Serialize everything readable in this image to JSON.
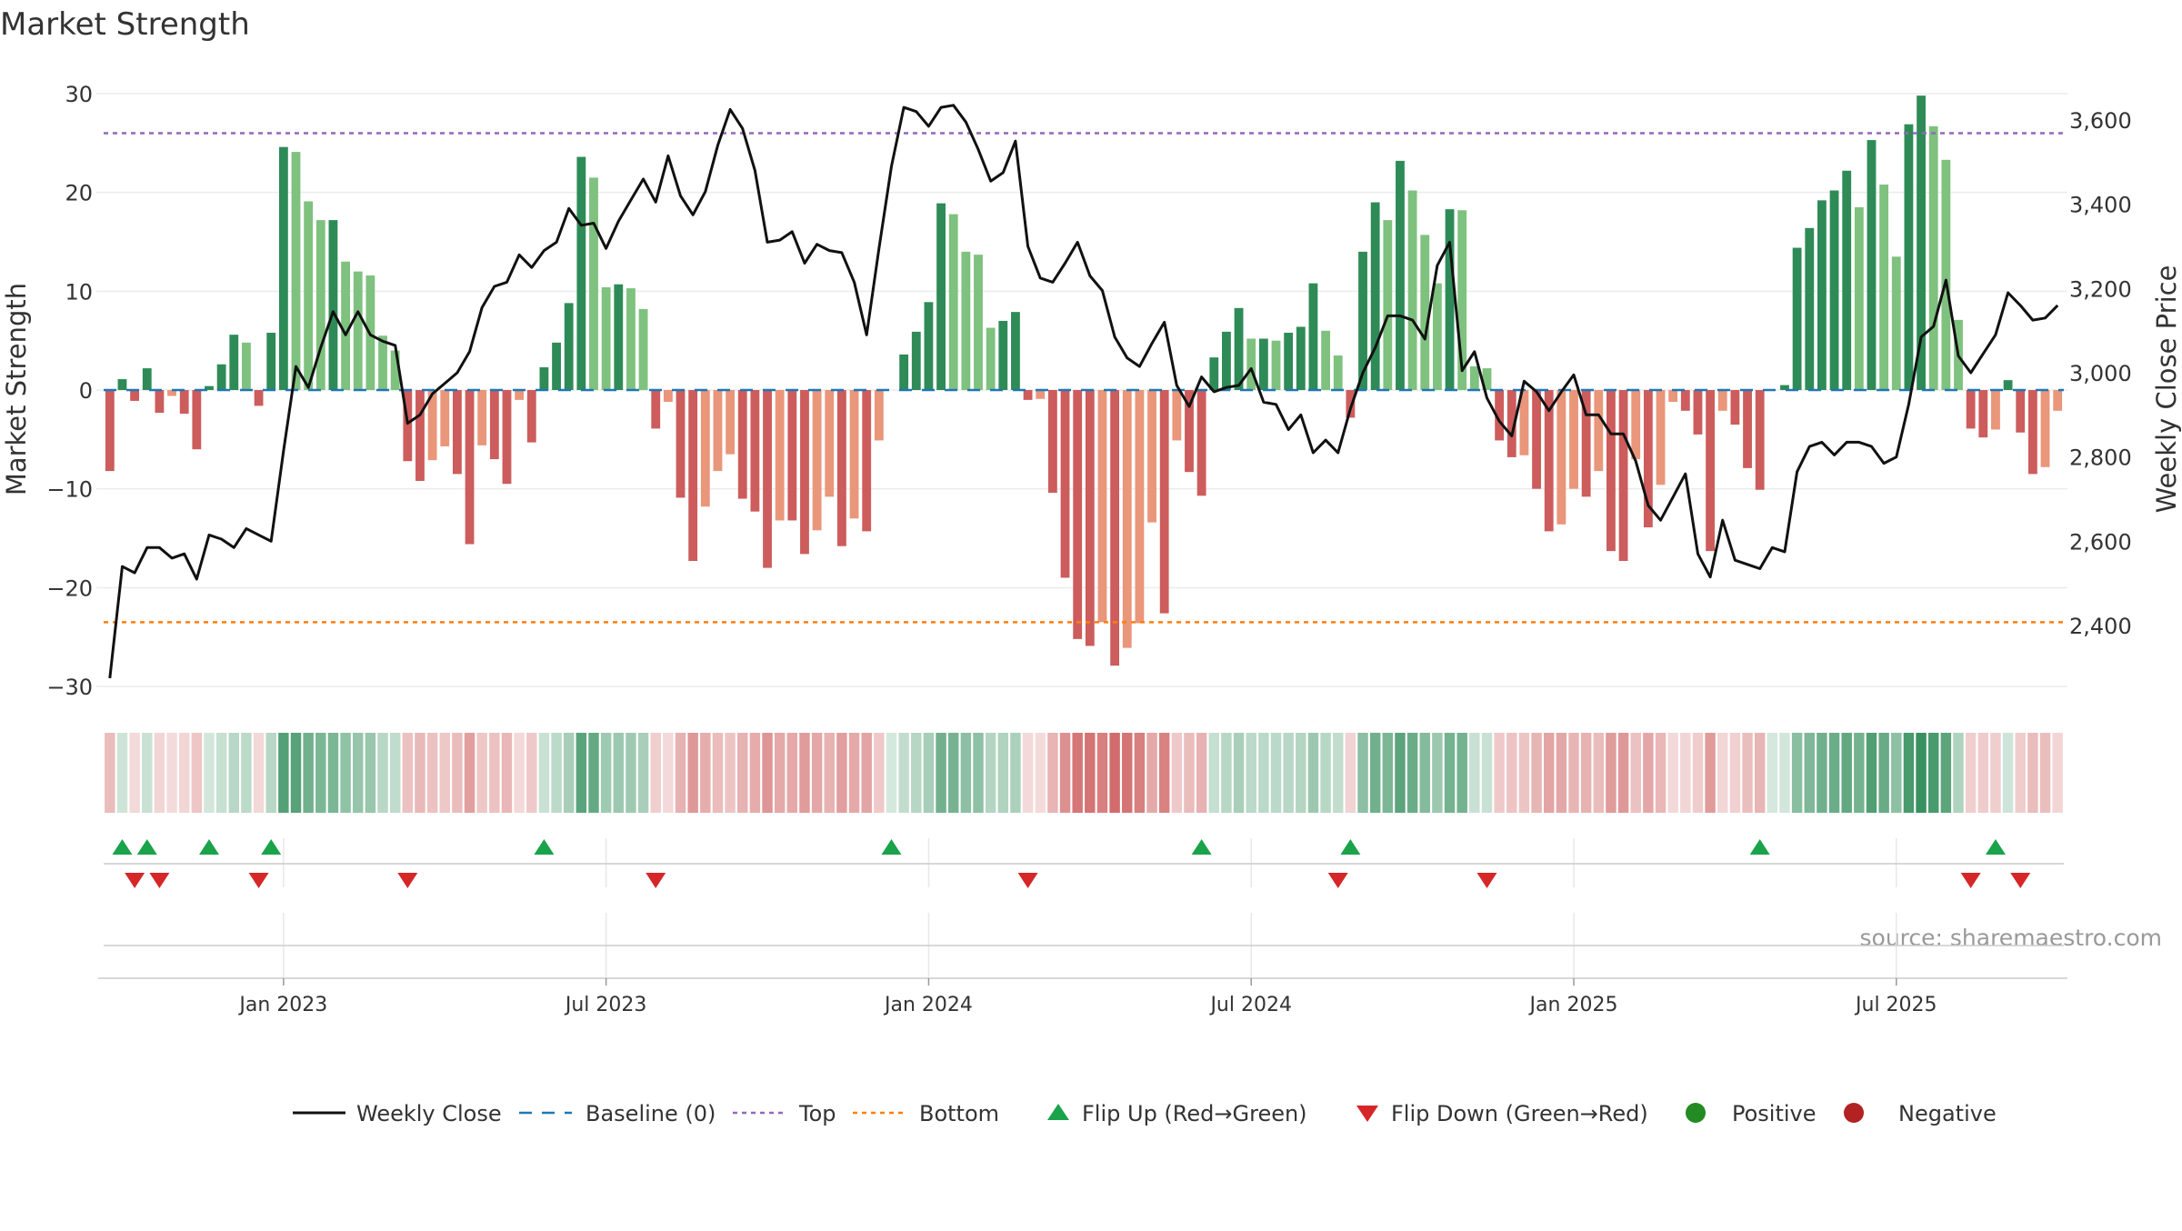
{
  "chart_data": {
    "type": "bar",
    "title": "Market Strength",
    "ylabel": "Market Strength",
    "y2label": "Weekly Close Price",
    "ylim": [
      -32,
      32
    ],
    "y2lim": [
      2200,
      3720
    ],
    "yticks": [
      30,
      20,
      10,
      0,
      -10,
      -20,
      -30
    ],
    "ytick_labels": [
      "30",
      "20",
      "10",
      "0",
      "−10",
      "−20",
      "−30"
    ],
    "y2ticks": [
      3600,
      3400,
      3200,
      3000,
      2800,
      2600,
      2400
    ],
    "y2tick_labels": [
      "3,600",
      "3,400",
      "3,200",
      "3,000",
      "2,800",
      "2,600",
      "2,400"
    ],
    "xticks": [
      {
        "index": 14,
        "label": "Jan 2023"
      },
      {
        "index": 40,
        "label": "Jul 2023"
      },
      {
        "index": 66,
        "label": "Jan 2024"
      },
      {
        "index": 92,
        "label": "Jul 2024"
      },
      {
        "index": 118,
        "label": "Jan 2025"
      },
      {
        "index": 144,
        "label": "Jul 2025"
      }
    ],
    "top_level": 26,
    "bottom_level": -23.5,
    "colors": {
      "pos_strong": "#2e8b57",
      "pos_weak": "#7fc17f",
      "neg_strong": "#cd5c5c",
      "neg_weak": "#e9967a",
      "line": "#111111",
      "baseline": "#1f77b4",
      "top": "#9467bd",
      "bottom": "#ff7f0e",
      "flip_up": "#1aa34a",
      "flip_down": "#d62728",
      "positive": "#228b22",
      "negative": "#b22222"
    },
    "series": [
      {
        "name": "Market Strength",
        "values": [
          -8.2,
          1.1,
          -1.1,
          2.2,
          -2.3,
          -0.6,
          -2.4,
          -6.0,
          0.4,
          2.6,
          5.6,
          4.8,
          -1.6,
          5.8,
          24.6,
          24.1,
          19.1,
          17.2,
          17.2,
          13.0,
          12.0,
          11.6,
          5.5,
          4.0,
          -7.2,
          -9.2,
          -7.1,
          -5.7,
          -8.5,
          -15.6,
          -5.6,
          -7.0,
          -9.5,
          -1.0,
          -5.3,
          2.3,
          4.8,
          8.8,
          23.6,
          21.5,
          10.4,
          10.7,
          10.3,
          8.2,
          -3.9,
          -1.2,
          -10.9,
          -17.3,
          -11.8,
          -8.2,
          -6.5,
          -11.0,
          -12.3,
          -18.0,
          -13.2,
          -13.2,
          -16.6,
          -14.2,
          -10.8,
          -15.8,
          -13.0,
          -14.3,
          -5.1,
          0.0,
          3.6,
          5.9,
          8.9,
          18.9,
          17.8,
          14.0,
          13.7,
          6.3,
          7.0,
          7.9,
          -1.0,
          -0.9,
          -10.4,
          -19.0,
          -25.2,
          -25.9,
          -23.5,
          -27.9,
          -26.1,
          -23.6,
          -13.4,
          -22.6,
          -5.1,
          -8.3,
          -10.7,
          3.3,
          5.9,
          8.3,
          5.2,
          5.2,
          5.0,
          5.8,
          6.4,
          10.8,
          6.0,
          3.5,
          -2.8,
          14.0,
          19.0,
          17.2,
          23.2,
          20.2,
          15.7,
          10.8,
          18.3,
          18.2,
          2.4,
          2.2,
          -5.1,
          -6.8,
          -6.6,
          -10.0,
          -14.3,
          -13.6,
          -10.0,
          -10.8,
          -8.2,
          -16.3,
          -17.3,
          -7.0,
          -13.9,
          -9.6,
          -1.2,
          -2.1,
          -4.5,
          -16.3,
          -2.1,
          -3.5,
          -7.9,
          -10.1,
          0.0,
          0.5,
          14.4,
          16.4,
          19.2,
          20.2,
          22.2,
          18.5,
          25.3,
          20.8,
          13.5,
          26.9,
          29.8,
          26.7,
          23.3,
          7.1,
          -3.9,
          -4.8,
          -4.0,
          1.0,
          -4.3,
          -8.5,
          -7.8,
          -2.1
        ]
      },
      {
        "name": "Weekly Close",
        "values": [
          2275,
          2540,
          2525,
          2585,
          2585,
          2560,
          2570,
          2510,
          2615,
          2605,
          2585,
          2630,
          2615,
          2600,
          2815,
          3015,
          2965,
          3060,
          3145,
          3090,
          3145,
          3090,
          3075,
          3065,
          2880,
          2900,
          2950,
          2975,
          3000,
          3050,
          3155,
          3205,
          3215,
          3280,
          3250,
          3290,
          3310,
          3390,
          3350,
          3355,
          3295,
          3360,
          3410,
          3460,
          3405,
          3515,
          3420,
          3375,
          3430,
          3540,
          3625,
          3580,
          3480,
          3310,
          3315,
          3335,
          3260,
          3305,
          3290,
          3285,
          3215,
          3090,
          3295,
          3490,
          3630,
          3620,
          3585,
          3630,
          3635,
          3595,
          3530,
          3455,
          3475,
          3550,
          3300,
          3225,
          3215,
          3260,
          3310,
          3230,
          3195,
          3085,
          3035,
          3015,
          3070,
          3120,
          2970,
          2920,
          2990,
          2955,
          2965,
          2970,
          3010,
          2930,
          2925,
          2865,
          2900,
          2810,
          2840,
          2810,
          2915,
          3000,
          3060,
          3135,
          3135,
          3125,
          3080,
          3255,
          3310,
          3005,
          3050,
          2940,
          2885,
          2850,
          2980,
          2955,
          2910,
          2955,
          2995,
          2900,
          2900,
          2855,
          2855,
          2790,
          2685,
          2650,
          2705,
          2760,
          2570,
          2515,
          2650,
          2555,
          2545,
          2535,
          2585,
          2575,
          2765,
          2825,
          2835,
          2805,
          2835,
          2835,
          2825,
          2785,
          2800,
          2925,
          3085,
          3110,
          3220,
          3040,
          3000,
          3045,
          3090,
          3190,
          3160,
          3125,
          3130,
          3160
        ]
      }
    ],
    "flip_up_indices": [
      1,
      3,
      8,
      13,
      35,
      63,
      88,
      100,
      133,
      152
    ],
    "flip_down_indices": [
      2,
      4,
      12,
      24,
      44,
      74,
      99,
      111,
      150,
      154
    ],
    "legend": {
      "position": "bottom-center",
      "items": [
        {
          "label": "Weekly Close",
          "marker": "line"
        },
        {
          "label": "Baseline (0)",
          "marker": "dash"
        },
        {
          "label": "Top",
          "marker": "dotted-top"
        },
        {
          "label": "Bottom",
          "marker": "dotted-bottom"
        },
        {
          "label": "Flip Up (Red→Green)",
          "marker": "triangle-up"
        },
        {
          "label": "Flip Down (Green→Red)",
          "marker": "triangle-down"
        },
        {
          "label": "Positive",
          "marker": "dot-positive"
        },
        {
          "label": "Negative",
          "marker": "dot-negative"
        }
      ]
    },
    "source": "source: sharemaestro.com"
  }
}
